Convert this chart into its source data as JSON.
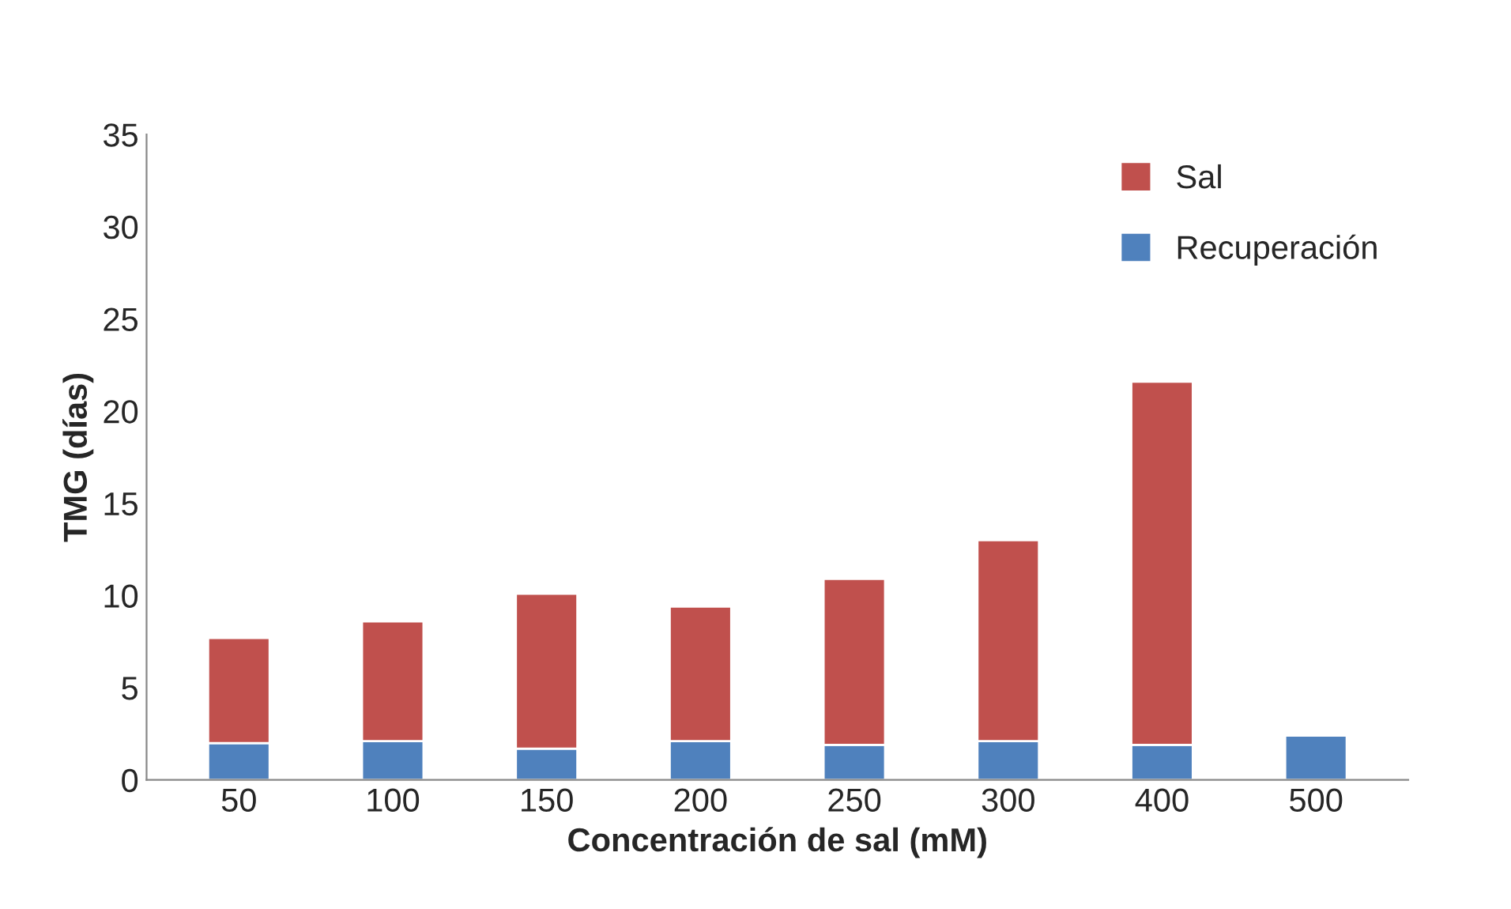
{
  "chart_data": {
    "type": "bar",
    "stacked": true,
    "xlabel": "Concentración de sal (mM)",
    "ylabel": "TMG (días)",
    "categories": [
      "50",
      "100",
      "150",
      "200",
      "250",
      "300",
      "400",
      "500"
    ],
    "series": [
      {
        "name": "Recuperación",
        "color": "#4f81bd",
        "values": [
          2.0,
          2.1,
          1.7,
          2.1,
          1.9,
          2.1,
          1.9,
          2.4
        ]
      },
      {
        "name": "Sal",
        "color": "#c0504d",
        "values": [
          5.7,
          6.5,
          8.4,
          7.3,
          9.0,
          10.9,
          19.7,
          null
        ]
      }
    ],
    "ylim": [
      0,
      35
    ],
    "yticks": [
      0,
      5,
      10,
      15,
      20,
      25,
      30,
      35
    ],
    "grid": false,
    "legend": "top right"
  }
}
